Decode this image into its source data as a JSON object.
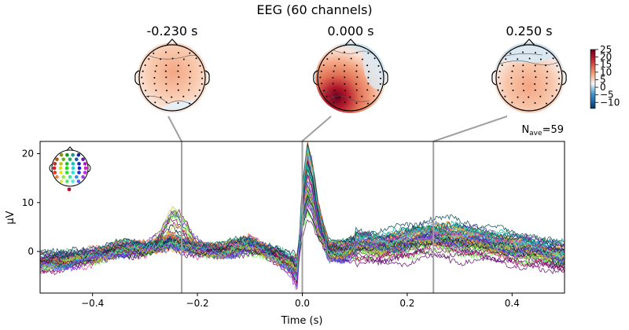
{
  "figure_title": "EEG (60 channels)",
  "topomaps": [
    {
      "label": "-0.230 s",
      "time": -0.23
    },
    {
      "label": "0.000 s",
      "time": 0.0
    },
    {
      "label": "0.250 s",
      "time": 0.25
    }
  ],
  "colorbar": {
    "ticks": [
      "25",
      "20",
      "15",
      "10",
      "5",
      "0",
      "−5",
      "−10"
    ],
    "tick_values": [
      25,
      20,
      15,
      10,
      5,
      0,
      -5,
      -10
    ],
    "range": [
      -14,
      25
    ],
    "colors": [
      "#053061",
      "#2166ac",
      "#4393c3",
      "#92c5de",
      "#f7f7f7",
      "#f4a582",
      "#d6604d",
      "#b2182b",
      "#67001f"
    ]
  },
  "nave": {
    "prefix": "N",
    "sub": "ave",
    "suffix": "=59"
  },
  "chart_data": {
    "type": "line",
    "title": "",
    "xlabel": "Time (s)",
    "ylabel": "µV",
    "xlim": [
      -0.5,
      0.5
    ],
    "ylim": [
      -8.5,
      22.5
    ],
    "x_ticks": [
      -0.4,
      -0.2,
      0.0,
      0.2,
      0.4
    ],
    "x_tick_labels": [
      "−0.4",
      "−0.2",
      "0.0",
      "0.2",
      "0.4"
    ],
    "y_ticks": [
      0,
      10,
      20
    ],
    "y_tick_labels": [
      "0",
      "10",
      "20"
    ],
    "marker_times": [
      -0.23,
      0.0,
      0.25
    ],
    "n_channels": 60,
    "grand_mean": {
      "x": [
        -0.5,
        -0.45,
        -0.4,
        -0.35,
        -0.3,
        -0.25,
        -0.23,
        -0.2,
        -0.15,
        -0.1,
        -0.05,
        -0.02,
        -0.01,
        0.0,
        0.01,
        0.02,
        0.03,
        0.05,
        0.08,
        0.1,
        0.15,
        0.2,
        0.25,
        0.3,
        0.35,
        0.4,
        0.45,
        0.5
      ],
      "y": [
        -2.0,
        -1.6,
        -1.0,
        0.6,
        0.4,
        1.6,
        0.5,
        0.2,
        0.3,
        1.2,
        -0.6,
        -2.5,
        -4.0,
        8.0,
        14.0,
        11.0,
        6.0,
        0.3,
        0.0,
        0.8,
        0.6,
        1.2,
        2.5,
        1.8,
        1.4,
        0.2,
        -0.4,
        -1.2
      ]
    },
    "peak_latency_s": 0.01,
    "peak_max_uV": 20.5
  }
}
